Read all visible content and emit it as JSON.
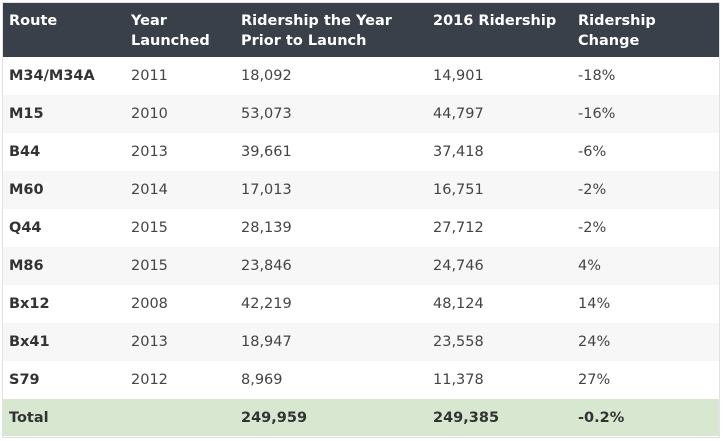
{
  "headers": {
    "route": "Route",
    "year": "Year Launched",
    "prior": "Ridership the Year Prior to Launch",
    "r2016": "2016 Ridership",
    "change": "Ridership Change"
  },
  "rows": [
    {
      "route": "M34/M34A",
      "year": "2011",
      "prior": "18,092",
      "r2016": "14,901",
      "change": "-18%"
    },
    {
      "route": "M15",
      "year": "2010",
      "prior": "53,073",
      "r2016": "44,797",
      "change": "-16%"
    },
    {
      "route": "B44",
      "year": "2013",
      "prior": "39,661",
      "r2016": "37,418",
      "change": "-6%"
    },
    {
      "route": "M60",
      "year": "2014",
      "prior": "17,013",
      "r2016": "16,751",
      "change": "-2%"
    },
    {
      "route": "Q44",
      "year": "2015",
      "prior": "28,139",
      "r2016": "27,712",
      "change": "-2%"
    },
    {
      "route": "M86",
      "year": "2015",
      "prior": "23,846",
      "r2016": "24,746",
      "change": "4%"
    },
    {
      "route": "Bx12",
      "year": "2008",
      "prior": "42,219",
      "r2016": "48,124",
      "change": "14%"
    },
    {
      "route": "Bx41",
      "year": "2013",
      "prior": "18,947",
      "r2016": "23,558",
      "change": "24%"
    },
    {
      "route": "S79",
      "year": "2012",
      "prior": "8,969",
      "r2016": "11,378",
      "change": "27%"
    }
  ],
  "total": {
    "route": "Total",
    "year": "",
    "prior": "249,959",
    "r2016": "249,385",
    "change": "-0.2%"
  },
  "colors": {
    "header_bg": "#3a4049",
    "total_bg": "#d8e7d0",
    "stripe_bg": "#f7f7f7"
  }
}
